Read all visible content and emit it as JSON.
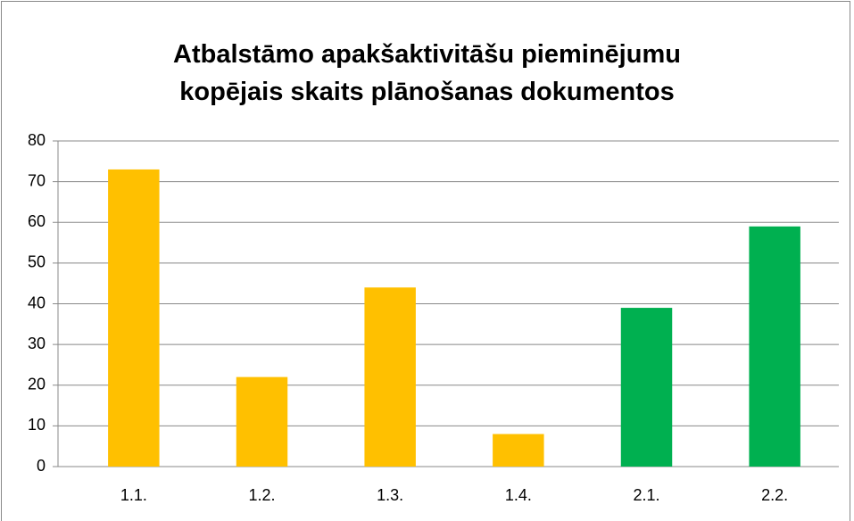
{
  "chart_data": {
    "type": "bar",
    "title": "Atbalstāmo apakšaktivitāšu pieminējumu\nkopējais skaits plānošanas dokumentos",
    "categories": [
      "1.1.",
      "1.2.",
      "1.3.",
      "1.4.",
      "2.1.",
      "2.2."
    ],
    "values": [
      73,
      22,
      44,
      8,
      39,
      59
    ],
    "colors": [
      "#ffc000",
      "#ffc000",
      "#ffc000",
      "#ffc000",
      "#00b050",
      "#00b050"
    ],
    "ylim": [
      0,
      80
    ],
    "yticks": [
      0,
      10,
      20,
      30,
      40,
      50,
      60,
      70,
      80
    ],
    "grid": true
  }
}
